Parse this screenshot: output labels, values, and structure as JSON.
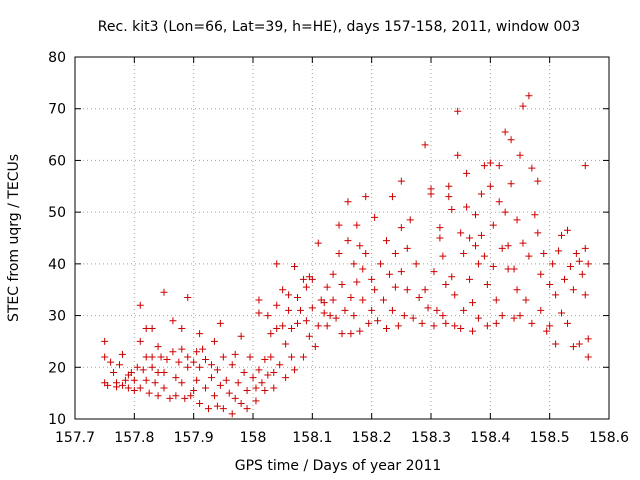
{
  "chart_data": {
    "type": "scatter",
    "title": "Rec. kit3 (Lon=66, Lat=39, h=HE), days 157-158, 2011, window 003",
    "xlabel": "GPS time / Days of year 2011",
    "ylabel": "STEC from uqrg / TECUs",
    "xlim": [
      157.7,
      158.6
    ],
    "ylim": [
      10,
      80
    ],
    "xticks": [
      157.7,
      157.8,
      157.9,
      158.0,
      158.1,
      158.2,
      158.3,
      158.4,
      158.5,
      158.6
    ],
    "xtick_labels": [
      "157.7",
      "157.8",
      "157.9",
      "158",
      "158.1",
      "158.2",
      "158.3",
      "158.4",
      "158.5",
      "158.6"
    ],
    "yticks": [
      10,
      20,
      30,
      40,
      50,
      60,
      70,
      80
    ],
    "ytick_labels": [
      "10",
      "20",
      "30",
      "40",
      "50",
      "60",
      "70",
      "80"
    ],
    "grid": true,
    "marker": "+",
    "color": "#cc0000",
    "points": [
      [
        157.75,
        25.0
      ],
      [
        157.75,
        22.0
      ],
      [
        157.75,
        17.0
      ],
      [
        157.755,
        16.5
      ],
      [
        157.76,
        21.0
      ],
      [
        157.765,
        19.0
      ],
      [
        157.77,
        17.0
      ],
      [
        157.77,
        16.2
      ],
      [
        157.775,
        20.5
      ],
      [
        157.78,
        22.5
      ],
      [
        157.78,
        16.5
      ],
      [
        157.785,
        17.5
      ],
      [
        157.79,
        18.5
      ],
      [
        157.79,
        16.0
      ],
      [
        157.795,
        19.0
      ],
      [
        157.8,
        17.5
      ],
      [
        157.8,
        15.5
      ],
      [
        157.805,
        20.0
      ],
      [
        157.81,
        32.0
      ],
      [
        157.81,
        25.0
      ],
      [
        157.81,
        16.0
      ],
      [
        157.815,
        19.5
      ],
      [
        157.82,
        27.5
      ],
      [
        157.82,
        22.0
      ],
      [
        157.82,
        17.5
      ],
      [
        157.825,
        15.0
      ],
      [
        157.83,
        20.0
      ],
      [
        157.83,
        27.5
      ],
      [
        157.83,
        22.0
      ],
      [
        157.835,
        17.0
      ],
      [
        157.84,
        19.0
      ],
      [
        157.84,
        24.0
      ],
      [
        157.84,
        14.5
      ],
      [
        157.845,
        22.0
      ],
      [
        157.85,
        34.5
      ],
      [
        157.85,
        19.0
      ],
      [
        157.85,
        16.0
      ],
      [
        157.855,
        21.5
      ],
      [
        157.86,
        14.0
      ],
      [
        157.865,
        29.0
      ],
      [
        157.865,
        23.0
      ],
      [
        157.87,
        18.0
      ],
      [
        157.87,
        14.5
      ],
      [
        157.875,
        21.0
      ],
      [
        157.88,
        27.5
      ],
      [
        157.88,
        23.5
      ],
      [
        157.88,
        17.0
      ],
      [
        157.885,
        14.0
      ],
      [
        157.89,
        33.5
      ],
      [
        157.89,
        22.0
      ],
      [
        157.89,
        20.0
      ],
      [
        157.895,
        14.5
      ],
      [
        157.9,
        15.5
      ],
      [
        157.9,
        21.0
      ],
      [
        157.905,
        23.0
      ],
      [
        157.905,
        17.5
      ],
      [
        157.91,
        26.5
      ],
      [
        157.91,
        20.0
      ],
      [
        157.91,
        13.0
      ],
      [
        157.915,
        23.5
      ],
      [
        157.92,
        16.0
      ],
      [
        157.92,
        21.5
      ],
      [
        157.925,
        12.0
      ],
      [
        157.93,
        18.0
      ],
      [
        157.93,
        20.5
      ],
      [
        157.935,
        25.0
      ],
      [
        157.935,
        14.5
      ],
      [
        157.94,
        19.5
      ],
      [
        157.94,
        12.5
      ],
      [
        157.945,
        28.5
      ],
      [
        157.945,
        16.5
      ],
      [
        157.95,
        22.0
      ],
      [
        157.95,
        12.0
      ],
      [
        157.955,
        17.5
      ],
      [
        157.96,
        15.0
      ],
      [
        157.965,
        20.5
      ],
      [
        157.965,
        11.0
      ],
      [
        157.97,
        14.0
      ],
      [
        157.97,
        22.5
      ],
      [
        157.975,
        17.0
      ],
      [
        157.98,
        13.0
      ],
      [
        157.98,
        26.0
      ],
      [
        157.985,
        19.0
      ],
      [
        157.99,
        15.5
      ],
      [
        157.99,
        12.0
      ],
      [
        157.995,
        22.0
      ],
      [
        158.0,
        18.0
      ],
      [
        158.005,
        16.0
      ],
      [
        158.005,
        13.5
      ],
      [
        158.01,
        33.0
      ],
      [
        158.01,
        19.5
      ],
      [
        158.01,
        30.5
      ],
      [
        158.015,
        17.0
      ],
      [
        158.02,
        21.5
      ],
      [
        158.02,
        15.5
      ],
      [
        158.025,
        30.0
      ],
      [
        158.025,
        18.5
      ],
      [
        158.03,
        22.0
      ],
      [
        158.03,
        26.5
      ],
      [
        158.035,
        19.0
      ],
      [
        158.035,
        16.0
      ],
      [
        158.04,
        40.0
      ],
      [
        158.04,
        32.0
      ],
      [
        158.04,
        27.5
      ],
      [
        158.045,
        20.5
      ],
      [
        158.05,
        35.0
      ],
      [
        158.05,
        28.0
      ],
      [
        158.055,
        24.5
      ],
      [
        158.055,
        18.0
      ],
      [
        158.06,
        31.0
      ],
      [
        158.06,
        34.0
      ],
      [
        158.065,
        22.0
      ],
      [
        158.065,
        27.5
      ],
      [
        158.07,
        39.5
      ],
      [
        158.07,
        19.5
      ],
      [
        158.075,
        33.5
      ],
      [
        158.075,
        28.5
      ],
      [
        158.08,
        31.0
      ],
      [
        158.085,
        37.0
      ],
      [
        158.085,
        22.0
      ],
      [
        158.09,
        29.0
      ],
      [
        158.09,
        35.5
      ],
      [
        158.095,
        37.5
      ],
      [
        158.095,
        26.0
      ],
      [
        158.1,
        31.5
      ],
      [
        158.1,
        37.0
      ],
      [
        158.105,
        24.0
      ],
      [
        158.11,
        44.0
      ],
      [
        158.11,
        28.0
      ],
      [
        158.115,
        33.0
      ],
      [
        158.12,
        30.5
      ],
      [
        158.12,
        32.5
      ],
      [
        158.125,
        28.0
      ],
      [
        158.125,
        35.5
      ],
      [
        158.13,
        30.0
      ],
      [
        158.135,
        38.0
      ],
      [
        158.135,
        33.0
      ],
      [
        158.14,
        29.5
      ],
      [
        158.145,
        47.5
      ],
      [
        158.145,
        42.0
      ],
      [
        158.15,
        26.5
      ],
      [
        158.15,
        36.0
      ],
      [
        158.155,
        31.0
      ],
      [
        158.16,
        52.0
      ],
      [
        158.16,
        44.5
      ],
      [
        158.165,
        33.5
      ],
      [
        158.165,
        26.5
      ],
      [
        158.17,
        40.0
      ],
      [
        158.17,
        30.0
      ],
      [
        158.175,
        47.5
      ],
      [
        158.175,
        36.5
      ],
      [
        158.18,
        43.5
      ],
      [
        158.18,
        27.0
      ],
      [
        158.185,
        39.0
      ],
      [
        158.185,
        33.0
      ],
      [
        158.19,
        53.0
      ],
      [
        158.19,
        42.0
      ],
      [
        158.195,
        28.5
      ],
      [
        158.2,
        37.0
      ],
      [
        158.2,
        31.0
      ],
      [
        158.205,
        49.0
      ],
      [
        158.205,
        35.0
      ],
      [
        158.21,
        29.0
      ],
      [
        158.215,
        40.0
      ],
      [
        158.22,
        33.0
      ],
      [
        158.225,
        44.5
      ],
      [
        158.225,
        27.5
      ],
      [
        158.23,
        38.0
      ],
      [
        158.235,
        53.0
      ],
      [
        158.235,
        31.0
      ],
      [
        158.24,
        42.0
      ],
      [
        158.24,
        35.5
      ],
      [
        158.245,
        28.0
      ],
      [
        158.25,
        56.0
      ],
      [
        158.25,
        47.0
      ],
      [
        158.25,
        38.5
      ],
      [
        158.255,
        30.0
      ],
      [
        158.26,
        43.0
      ],
      [
        158.26,
        35.0
      ],
      [
        158.265,
        48.5
      ],
      [
        158.27,
        29.5
      ],
      [
        158.275,
        40.0
      ],
      [
        158.28,
        33.5
      ],
      [
        158.285,
        28.5
      ],
      [
        158.29,
        63.0
      ],
      [
        158.29,
        35.0
      ],
      [
        158.295,
        31.5
      ],
      [
        158.3,
        54.5
      ],
      [
        158.3,
        53.5
      ],
      [
        158.305,
        38.5
      ],
      [
        158.305,
        28.0
      ],
      [
        158.31,
        31.0
      ],
      [
        158.315,
        47.0
      ],
      [
        158.315,
        45.0
      ],
      [
        158.32,
        41.5
      ],
      [
        158.32,
        30.0
      ],
      [
        158.325,
        36.0
      ],
      [
        158.325,
        28.5
      ],
      [
        158.33,
        55.0
      ],
      [
        158.33,
        53.0
      ],
      [
        158.335,
        50.5
      ],
      [
        158.335,
        37.5
      ],
      [
        158.34,
        34.0
      ],
      [
        158.34,
        28.0
      ],
      [
        158.345,
        69.5
      ],
      [
        158.345,
        61.0
      ],
      [
        158.35,
        46.0
      ],
      [
        158.35,
        27.5
      ],
      [
        158.355,
        42.0
      ],
      [
        158.355,
        31.0
      ],
      [
        158.36,
        57.5
      ],
      [
        158.36,
        51.0
      ],
      [
        158.365,
        45.0
      ],
      [
        158.365,
        37.0
      ],
      [
        158.37,
        32.5
      ],
      [
        158.37,
        27.0
      ],
      [
        158.375,
        49.5
      ],
      [
        158.375,
        43.5
      ],
      [
        158.38,
        40.0
      ],
      [
        158.38,
        29.5
      ],
      [
        158.385,
        53.5
      ],
      [
        158.385,
        45.5
      ],
      [
        158.39,
        59.0
      ],
      [
        158.39,
        41.5
      ],
      [
        158.395,
        36.0
      ],
      [
        158.395,
        28.0
      ],
      [
        158.4,
        59.5
      ],
      [
        158.4,
        55.0
      ],
      [
        158.405,
        47.5
      ],
      [
        158.405,
        39.5
      ],
      [
        158.41,
        33.0
      ],
      [
        158.41,
        28.5
      ],
      [
        158.415,
        59.0
      ],
      [
        158.415,
        52.0
      ],
      [
        158.42,
        43.0
      ],
      [
        158.42,
        30.0
      ],
      [
        158.425,
        65.5
      ],
      [
        158.425,
        50.0
      ],
      [
        158.43,
        43.5
      ],
      [
        158.43,
        39.0
      ],
      [
        158.435,
        64.0
      ],
      [
        158.435,
        55.5
      ],
      [
        158.44,
        39.0
      ],
      [
        158.44,
        29.5
      ],
      [
        158.445,
        48.5
      ],
      [
        158.445,
        35.0
      ],
      [
        158.45,
        61.0
      ],
      [
        158.45,
        30.0
      ],
      [
        158.455,
        70.5
      ],
      [
        158.455,
        44.0
      ],
      [
        158.46,
        33.0
      ],
      [
        158.465,
        72.5
      ],
      [
        158.465,
        41.5
      ],
      [
        158.47,
        58.5
      ],
      [
        158.47,
        28.5
      ],
      [
        158.475,
        49.5
      ],
      [
        158.48,
        56.0
      ],
      [
        158.48,
        46.0
      ],
      [
        158.485,
        38.0
      ],
      [
        158.485,
        31.0
      ],
      [
        158.49,
        42.0
      ],
      [
        158.495,
        27.0
      ],
      [
        158.5,
        36.0
      ],
      [
        158.5,
        28.0
      ],
      [
        158.505,
        40.0
      ],
      [
        158.51,
        34.0
      ],
      [
        158.51,
        24.5
      ],
      [
        158.515,
        42.5
      ],
      [
        158.52,
        45.5
      ],
      [
        158.52,
        30.5
      ],
      [
        158.525,
        37.0
      ],
      [
        158.53,
        46.5
      ],
      [
        158.53,
        28.5
      ],
      [
        158.535,
        39.5
      ],
      [
        158.54,
        35.0
      ],
      [
        158.54,
        24.0
      ],
      [
        158.545,
        42.0
      ],
      [
        158.55,
        40.5
      ],
      [
        158.55,
        24.5
      ],
      [
        158.555,
        38.0
      ],
      [
        158.56,
        43.0
      ],
      [
        158.56,
        59.0
      ],
      [
        158.56,
        34.0
      ],
      [
        158.565,
        25.5
      ],
      [
        158.565,
        22.0
      ],
      [
        158.565,
        40.0
      ]
    ]
  }
}
